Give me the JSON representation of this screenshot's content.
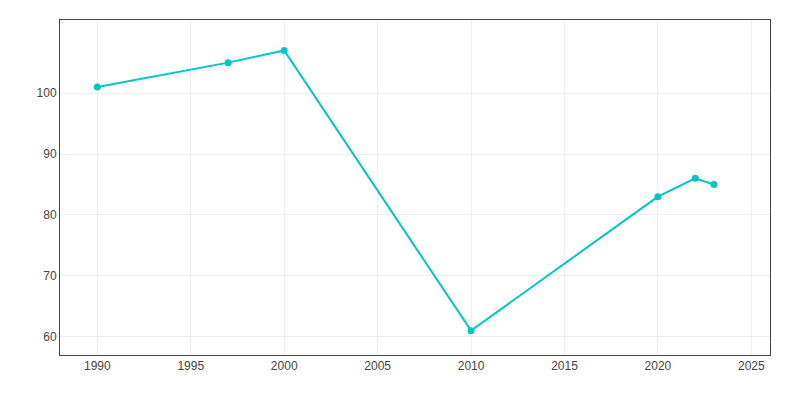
{
  "chart_data": {
    "type": "line",
    "x": [
      1990,
      1997,
      2000,
      2010,
      2020,
      2022,
      2023
    ],
    "values": [
      101,
      105,
      107,
      61,
      83,
      86,
      85
    ],
    "color": "#00C5C5",
    "marker": "circle",
    "xlim": [
      1988,
      2026
    ],
    "ylim": [
      57,
      112
    ],
    "xticks": [
      1990,
      1995,
      2000,
      2005,
      2010,
      2015,
      2020,
      2025
    ],
    "yticks": [
      60,
      70,
      80,
      90,
      100
    ],
    "grid": true
  }
}
